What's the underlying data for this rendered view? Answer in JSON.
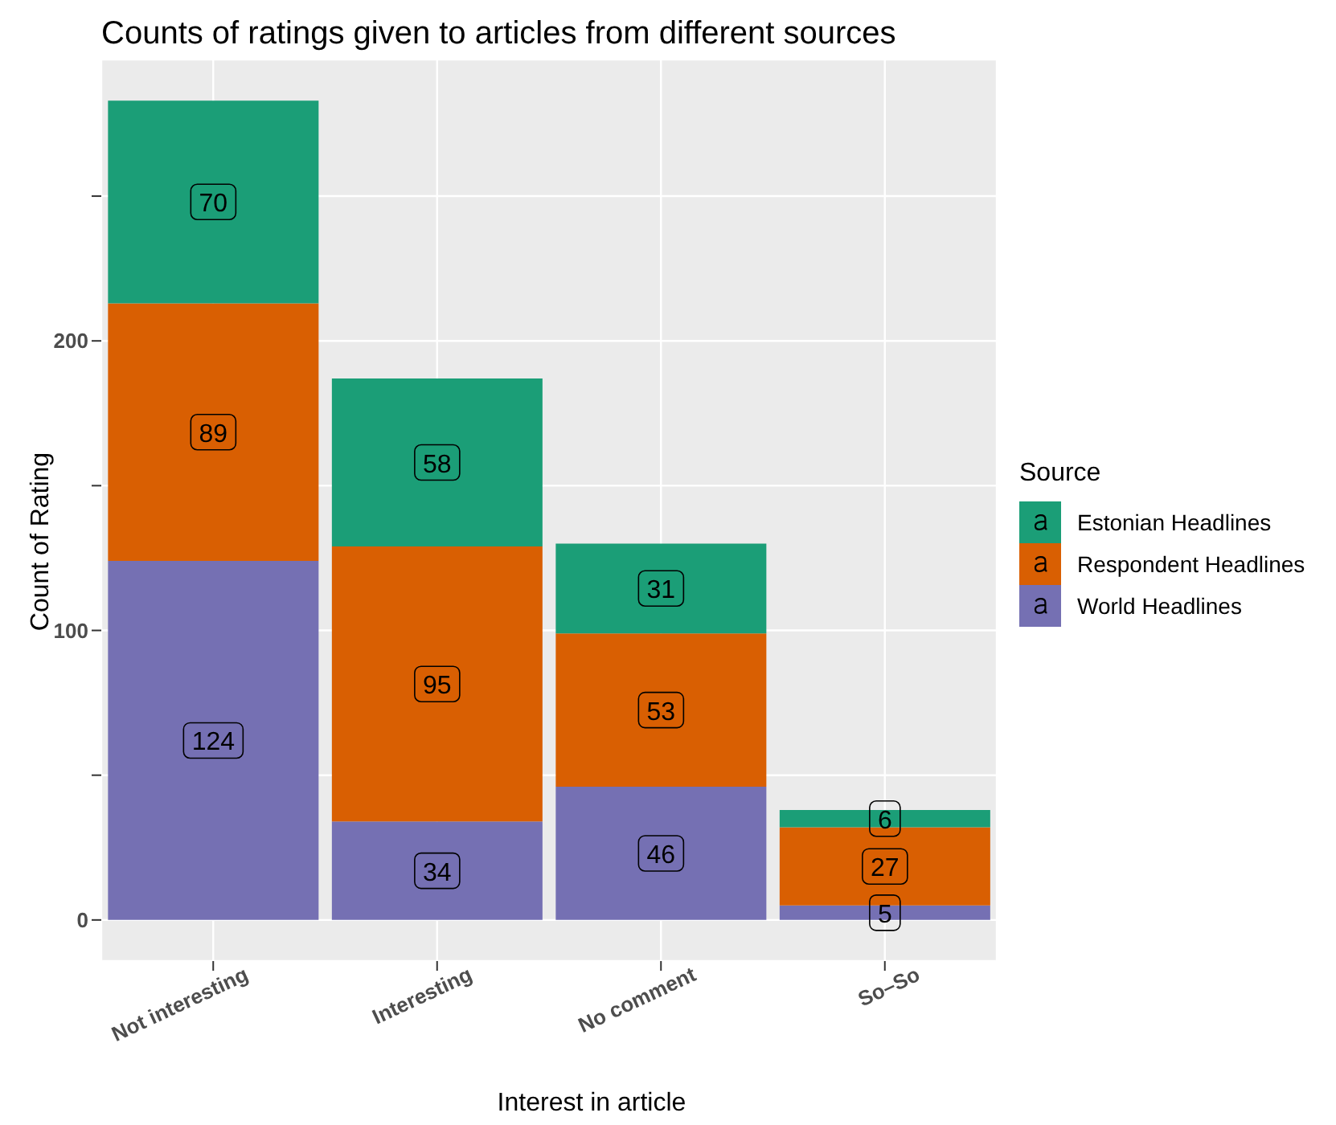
{
  "chart_data": {
    "type": "bar",
    "title": "Counts of ratings given to articles from different sources",
    "xlabel": "Interest in article",
    "ylabel": "Count of Rating",
    "legend_title": "Source",
    "categories": [
      "Not interesting",
      "Interesting",
      "No comment",
      "So–So"
    ],
    "stacked": true,
    "series": [
      {
        "name": "World Headlines",
        "color": "#7570b3",
        "values": [
          124,
          34,
          46,
          5
        ]
      },
      {
        "name": "Respondent Headlines",
        "color": "#d95f02",
        "values": [
          89,
          95,
          53,
          27
        ]
      },
      {
        "name": "Estonian Headlines",
        "color": "#1b9e77",
        "values": [
          70,
          58,
          31,
          6
        ]
      }
    ],
    "ylim": [
      -14.2,
      297.2
    ],
    "yticks": [
      {
        "value": 0,
        "label": "0"
      },
      {
        "value": 50,
        "label": null
      },
      {
        "value": 100,
        "label": "100"
      },
      {
        "value": 150,
        "label": null
      },
      {
        "value": 200,
        "label": "200"
      },
      {
        "value": 250,
        "label": null
      }
    ],
    "grid": true,
    "legend": "right",
    "data_labels": true
  }
}
